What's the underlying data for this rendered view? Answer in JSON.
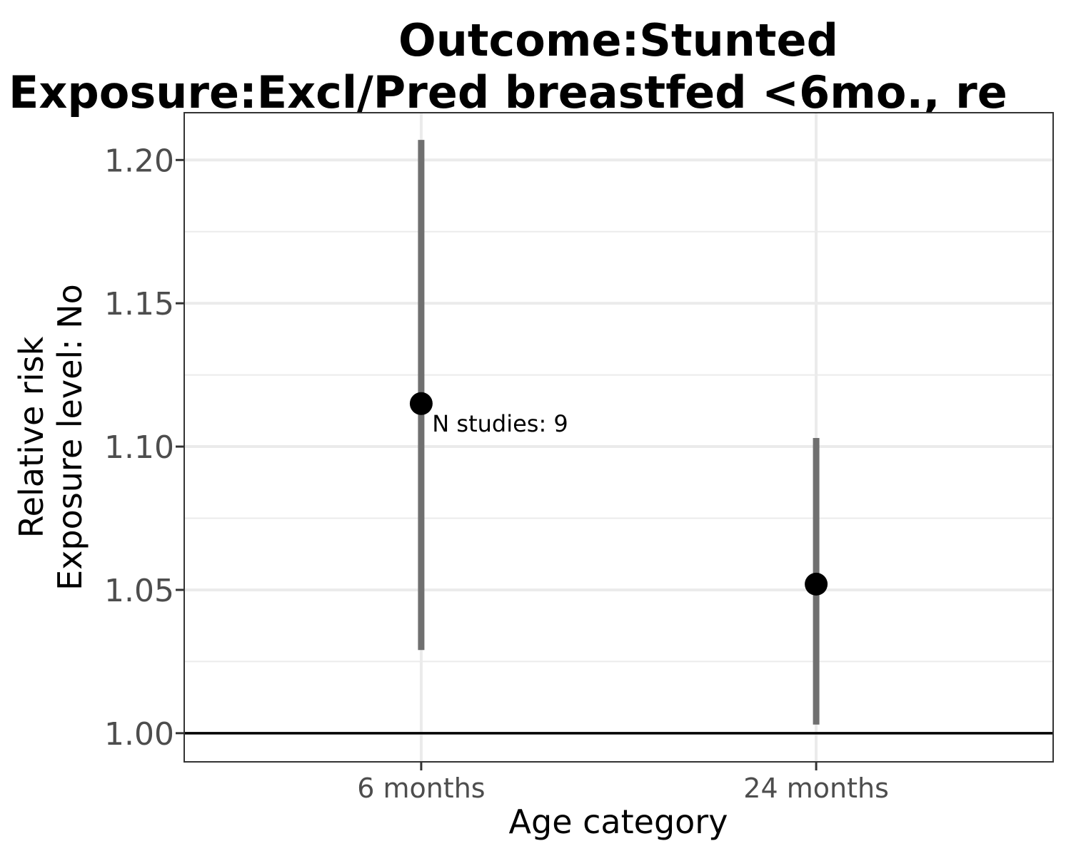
{
  "chart_data": {
    "type": "scatter",
    "title_lines": [
      "Outcome:Stunted",
      "Exposure:Excl/Pred breastfed <6mo., re"
    ],
    "xlabel": "Age category",
    "ylabel_lines": [
      "Relative risk",
      "Exposure level: No"
    ],
    "categories": [
      "6 months",
      "24 months"
    ],
    "series": [
      {
        "estimates": [
          1.115,
          1.052
        ],
        "ci_lower": [
          1.029,
          1.003
        ],
        "ci_upper": [
          1.207,
          1.103
        ]
      }
    ],
    "reference_line": 1.0,
    "ylim": [
      0.99,
      1.2165
    ],
    "yticks": [
      1.0,
      1.05,
      1.1,
      1.15,
      1.2
    ],
    "ytick_labels": [
      "1.00",
      "1.05",
      "1.10",
      "1.15",
      "1.20"
    ],
    "annotation": {
      "text": "N studies: 9",
      "x_category_position": 1.2,
      "y_value": 1.108
    },
    "grid": true,
    "colors": {
      "point": "#000000",
      "ci_line": "#707070",
      "grid": "#ebebeb",
      "panel_border": "#333333",
      "reference_line": "#000000",
      "tick_text": "#4d4d4d"
    }
  }
}
